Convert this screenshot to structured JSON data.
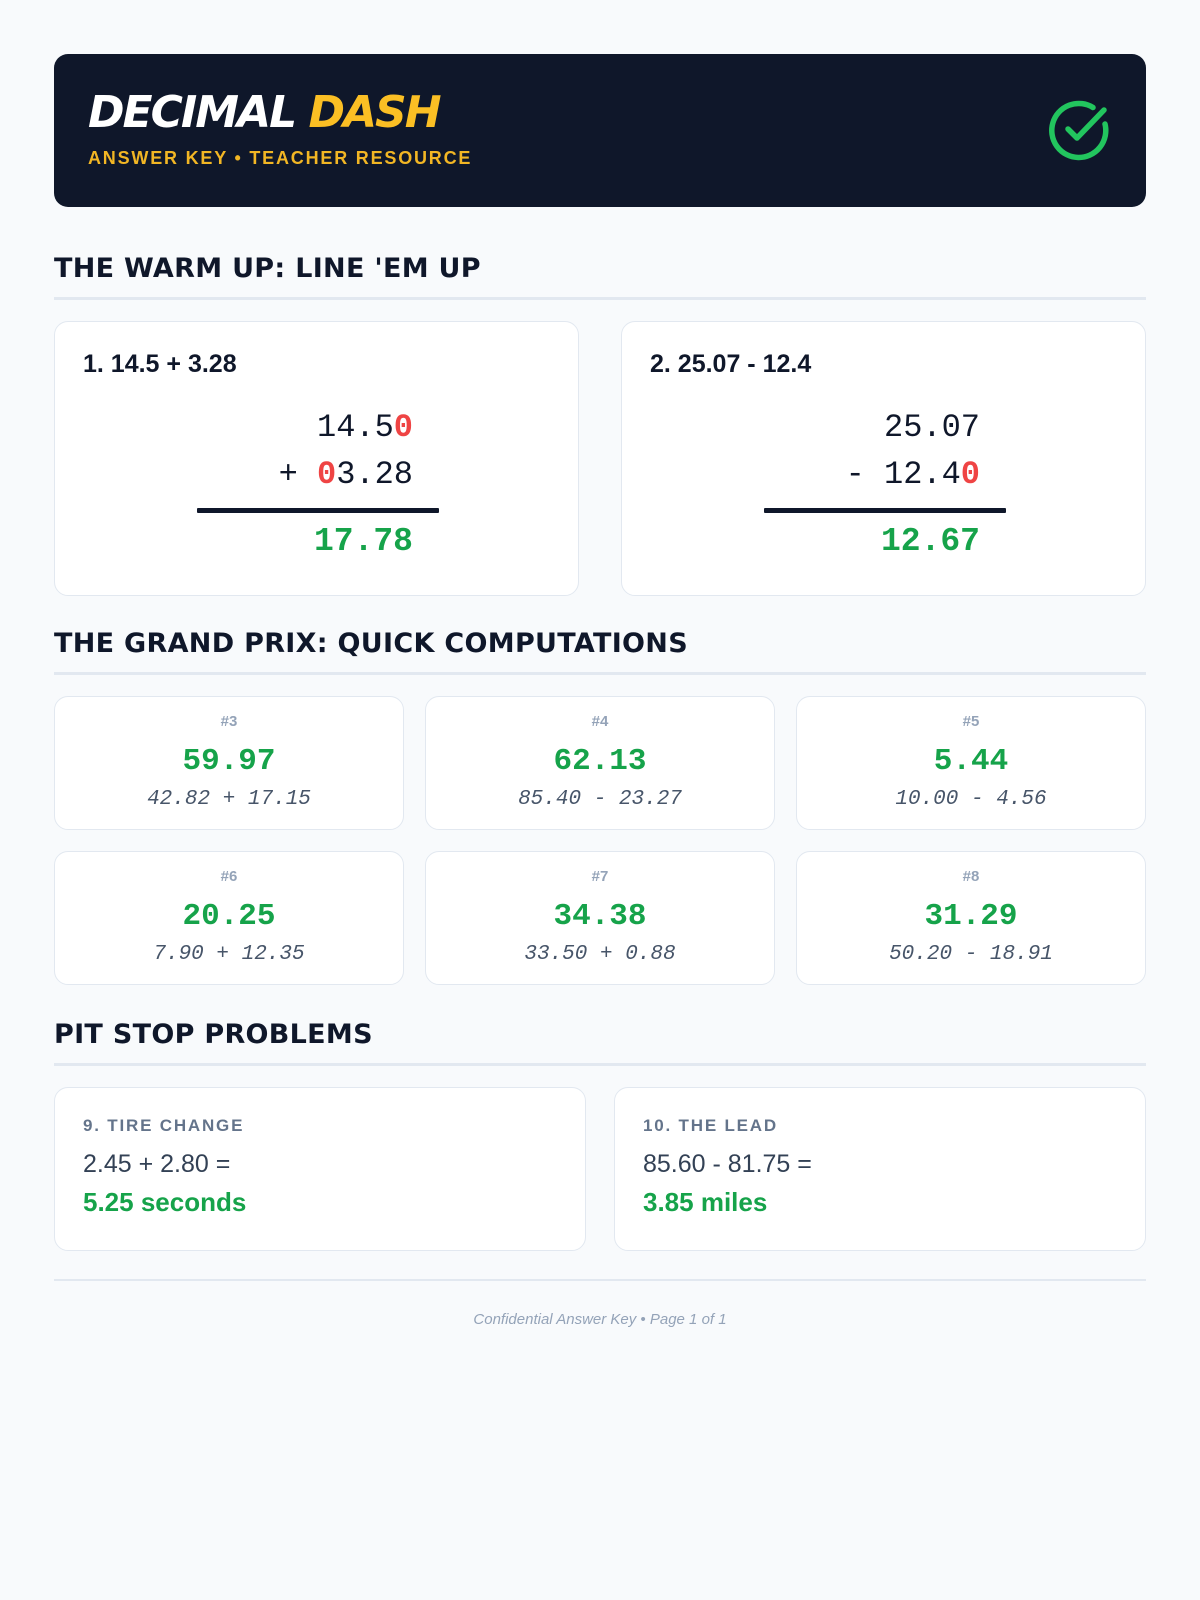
{
  "header": {
    "brand_part1": "DECIMAL",
    "brand_part2": "DASH",
    "subtitle": "ANSWER KEY • TEACHER RESOURCE",
    "badge_icon": "check-circle-icon",
    "badge_color": "#22c55e"
  },
  "colors": {
    "background": "#f8fafc",
    "navy": "#0f172a",
    "accent_yellow": "#fbbf24",
    "answer_green": "#16a34a",
    "padding_zero_red": "#ef4444"
  },
  "warmup": {
    "title": "THE WARM UP: LINE 'EM UP",
    "problems": [
      {
        "label": "1. 14.5 + 3.28",
        "line1": {
          "op": "",
          "lead": "",
          "main": "14.5",
          "trail": "0"
        },
        "line2": {
          "op": "+ ",
          "lead": "0",
          "main": "3.28",
          "trail": ""
        },
        "answer": "17.78"
      },
      {
        "label": "2. 25.07 - 12.4",
        "line1": {
          "op": "",
          "lead": "",
          "main": "25.07",
          "trail": ""
        },
        "line2": {
          "op": "- ",
          "lead": "",
          "main": "12.4",
          "trail": "0"
        },
        "answer": "12.67"
      }
    ]
  },
  "grandprix": {
    "title": "THE GRAND PRIX: QUICK COMPUTATIONS",
    "items": [
      {
        "num": "#3",
        "answer": "59.97",
        "expr": "42.82 + 17.15"
      },
      {
        "num": "#4",
        "answer": "62.13",
        "expr": "85.40 - 23.27"
      },
      {
        "num": "#5",
        "answer": "5.44",
        "expr": "10.00 - 4.56"
      },
      {
        "num": "#6",
        "answer": "20.25",
        "expr": "7.90 + 12.35"
      },
      {
        "num": "#7",
        "answer": "34.38",
        "expr": "33.50 + 0.88"
      },
      {
        "num": "#8",
        "answer": "31.29",
        "expr": "50.20 - 18.91"
      }
    ]
  },
  "pitstop": {
    "title": "PIT STOP PROBLEMS",
    "problems": [
      {
        "label": "9. TIRE CHANGE",
        "equation": "2.45 + 2.80 =",
        "answer": "5.25 seconds"
      },
      {
        "label": "10. THE LEAD",
        "equation": "85.60 - 81.75 =",
        "answer": "3.85 miles"
      }
    ]
  },
  "footer": {
    "text": "Confidential Answer Key • Page 1 of 1"
  }
}
